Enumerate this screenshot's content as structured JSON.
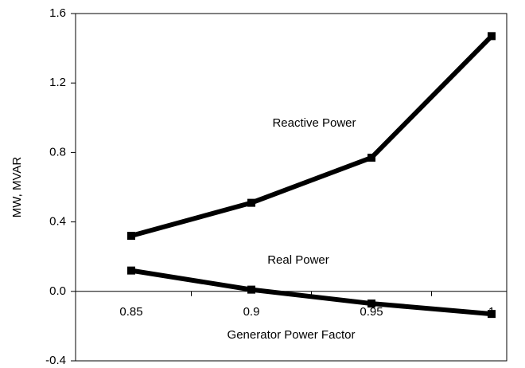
{
  "chart_data": {
    "type": "line",
    "ylabel": "MW, MVAR",
    "xlabel": "Generator Power Factor",
    "categories": [
      "0.85",
      "0.9",
      "0.95",
      "1"
    ],
    "series": [
      {
        "name": "Reactive Power",
        "color": "#000000",
        "values": [
          0.32,
          0.51,
          0.77,
          1.47
        ]
      },
      {
        "name": "Real Power",
        "color": "#000000",
        "values": [
          0.12,
          0.01,
          -0.07,
          -0.13
        ]
      }
    ],
    "ylim": [
      -0.4,
      1.6
    ],
    "yticks": [
      -0.4,
      {
        "value": 0,
        "label": "0.0"
      },
      0.4,
      0.8,
      1.2,
      1.6
    ],
    "grid": false
  }
}
